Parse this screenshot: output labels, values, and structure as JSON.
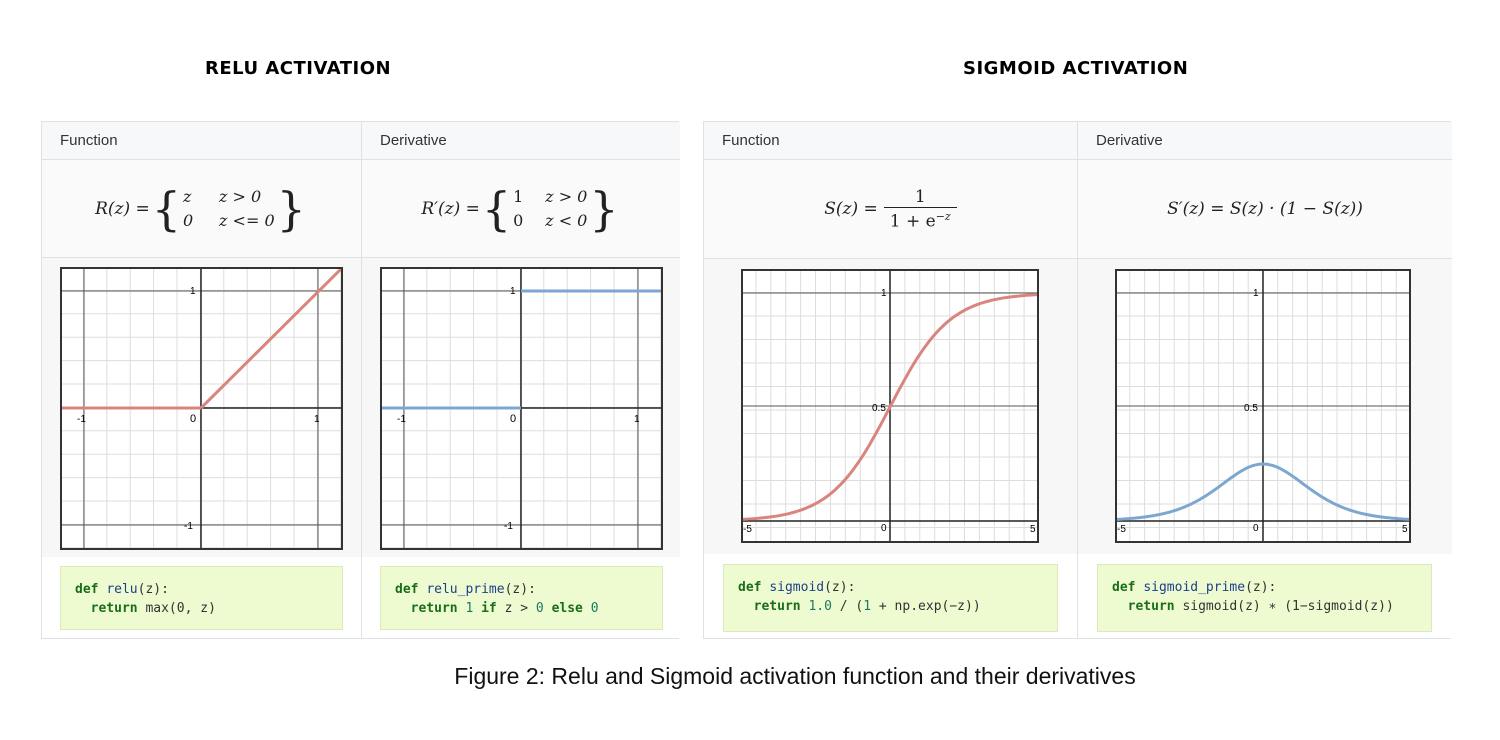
{
  "relu_title": "RELU ACTIVATION",
  "sigmoid_title": "SIGMOID ACTIVATION",
  "col_header_function": "Function",
  "col_header_derivative": "Derivative",
  "caption": "Figure 2: Relu and Sigmoid activation function and their derivatives",
  "relu": {
    "formula_lhs": "R(z) =",
    "case1_val": "z",
    "case1_cond": "z > 0",
    "case2_val": "0",
    "case2_cond": "z <= 0",
    "tick_xn": "-1",
    "tick_x0": "0",
    "tick_x1": "1",
    "tick_y1": "1",
    "tick_yn": "-1",
    "code_def": "def",
    "code_name": "relu",
    "code_args": "(z):",
    "code_return": "return",
    "code_body": "max(0, z)"
  },
  "relu_prime": {
    "formula_lhs": "R′(z) =",
    "case1_val": "1",
    "case1_cond": "z > 0",
    "case2_val": "0",
    "case2_cond": "z < 0",
    "tick_xn": "-1",
    "tick_x0": "0",
    "tick_x1": "1",
    "tick_y1": "1",
    "tick_yn": "-1",
    "code_def": "def",
    "code_name": "relu_prime",
    "code_args": "(z):",
    "code_return": "return",
    "code_num1": "1",
    "code_if": "if",
    "code_cond": "z > ",
    "code_num0": "0",
    "code_else": "else",
    "code_num0b": "0"
  },
  "sigmoid": {
    "formula_lhs": "S(z) =",
    "numerator": "1",
    "denominator": "1 + e",
    "exponent": "−z",
    "tick_xn": "-5",
    "tick_x0": "0",
    "tick_x1": "5",
    "tick_y1": "1",
    "tick_ymid": "0.5",
    "code_def": "def",
    "code_name": "sigmoid",
    "code_args": "(z):",
    "code_return": "return",
    "code_num": "1.0",
    "code_mid": " / (",
    "code_num2": "1",
    "code_tail": " + np.exp(−z))"
  },
  "sigmoid_prime": {
    "formula": "S′(z) = S(z) · (1 − S(z))",
    "tick_xn": "-5",
    "tick_x0": "0",
    "tick_x1": "5",
    "tick_y1": "1",
    "tick_ymid": "0.5",
    "code_def": "def",
    "code_name": "sigmoid_prime",
    "code_args": "(z):",
    "code_return": "return",
    "code_body": "sigmoid(z) ∗ (1−sigmoid(z))"
  },
  "colors": {
    "red_curve": "#d9857d",
    "blue_curve": "#7ea7d0"
  }
}
